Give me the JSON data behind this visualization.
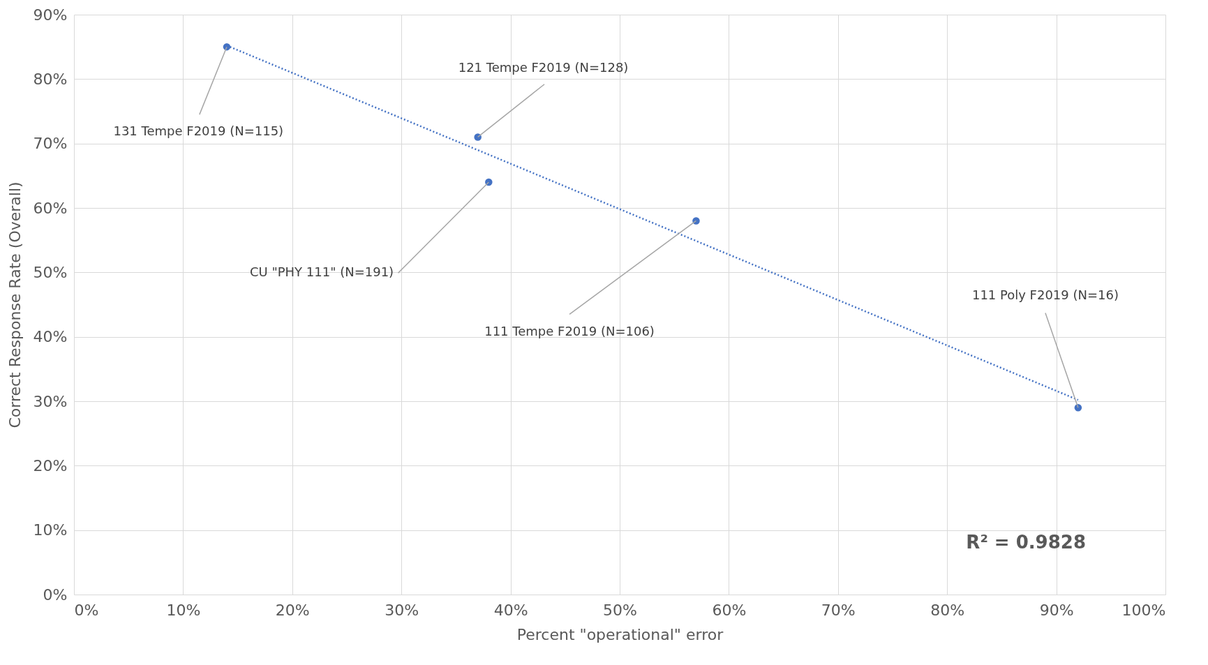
{
  "chart_data": {
    "type": "scatter",
    "xlabel": "Percent \"operational\" error",
    "ylabel": "Correct Response Rate (Overall)",
    "xlim": [
      0,
      100
    ],
    "ylim": [
      0,
      90
    ],
    "xticks": [
      {
        "value": 0,
        "label": "0%"
      },
      {
        "value": 10,
        "label": "10%"
      },
      {
        "value": 20,
        "label": "20%"
      },
      {
        "value": 30,
        "label": "30%"
      },
      {
        "value": 40,
        "label": "40%"
      },
      {
        "value": 50,
        "label": "50%"
      },
      {
        "value": 60,
        "label": "60%"
      },
      {
        "value": 70,
        "label": "70%"
      },
      {
        "value": 80,
        "label": "80%"
      },
      {
        "value": 90,
        "label": "90%"
      },
      {
        "value": 100,
        "label": "100%"
      }
    ],
    "yticks": [
      {
        "value": 0,
        "label": "0%"
      },
      {
        "value": 10,
        "label": "10%"
      },
      {
        "value": 20,
        "label": "20%"
      },
      {
        "value": 30,
        "label": "30%"
      },
      {
        "value": 40,
        "label": "40%"
      },
      {
        "value": 50,
        "label": "50%"
      },
      {
        "value": 60,
        "label": "60%"
      },
      {
        "value": 70,
        "label": "70%"
      },
      {
        "value": 80,
        "label": "80%"
      },
      {
        "value": 90,
        "label": "90%"
      }
    ],
    "grid": true,
    "marker": "circle",
    "series": [
      {
        "type": "scatter",
        "color": "#4472c4",
        "x": [
          14,
          37,
          38,
          57,
          92
        ],
        "values": [
          85,
          71,
          64,
          58,
          29
        ]
      },
      {
        "type": "line",
        "color": "#4472c4",
        "line_style": "dotted",
        "marker": "none",
        "x": [
          14,
          92
        ],
        "values": [
          85.2,
          30.2
        ]
      }
    ],
    "annotations": [
      {
        "text": "131 Tempe F2019 (N=115)",
        "x": 14,
        "y": 85
      },
      {
        "text": "121 Tempe F2019 (N=128)",
        "x": 37,
        "y": 71
      },
      {
        "text": "CU \"PHY 111\" (N=191)",
        "x": 38,
        "y": 64
      },
      {
        "text": "111 Tempe F2019 (N=106)",
        "x": 57,
        "y": 58
      },
      {
        "text": "111 Poly F2019 (N=16)",
        "x": 92,
        "y": 29
      },
      "R² = 0.9828"
    ]
  }
}
